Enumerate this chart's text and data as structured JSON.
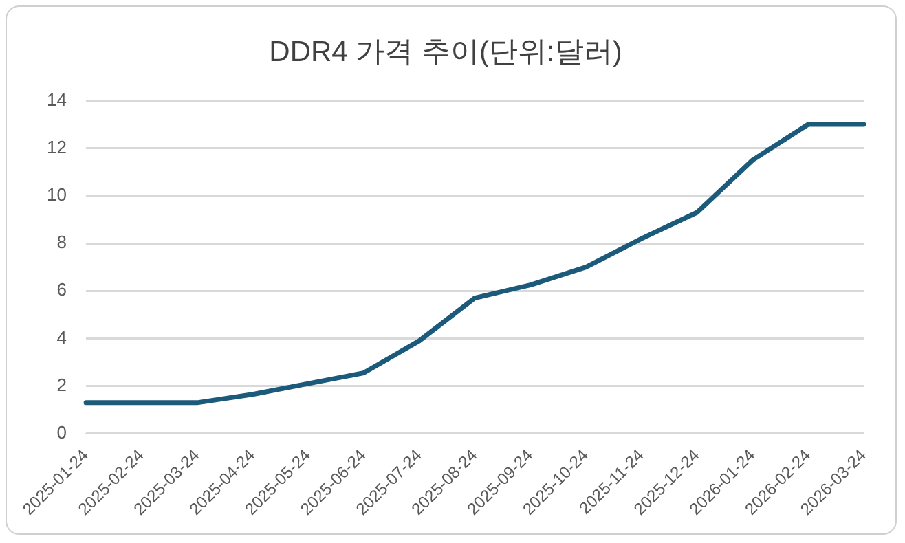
{
  "chart_data": {
    "type": "line",
    "title": "DDR4 가격 추이(단위:달러)",
    "categories": [
      "2025-01-24",
      "2025-02-24",
      "2025-03-24",
      "2025-04-24",
      "2025-05-24",
      "2025-06-24",
      "2025-07-24",
      "2025-08-24",
      "2025-09-24",
      "2025-10-24",
      "2025-11-24",
      "2025-12-24",
      "2026-01-24",
      "2026-02-24",
      "2026-03-24"
    ],
    "series": [
      {
        "color": "#1b5a7a",
        "values": [
          1.3,
          1.3,
          1.3,
          1.65,
          2.1,
          2.55,
          3.9,
          5.7,
          6.25,
          7.0,
          8.2,
          9.3,
          11.5,
          13,
          13
        ]
      }
    ],
    "ylim": [
      0,
      14
    ],
    "yticks": [
      0,
      2,
      4,
      6,
      8,
      10,
      12,
      14
    ],
    "grid": "y",
    "legend": false,
    "marker": "none",
    "line_style": "solid"
  }
}
